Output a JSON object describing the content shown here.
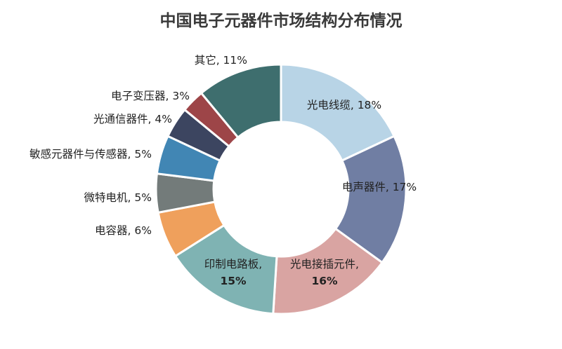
{
  "chart_data": {
    "type": "pie",
    "title": "中国电子元器件市场结构分布情况",
    "categories": [
      "光电线缆",
      "电声器件",
      "光电接插元件",
      "印制电路板",
      "电容器",
      "微特电机",
      "敏感元器件与传感器",
      "光通信器件",
      "电子变压器",
      "其它"
    ],
    "values": [
      18,
      17,
      16,
      15,
      6,
      5,
      5,
      4,
      3,
      11
    ],
    "unit": "%",
    "labels": [
      "光电线缆, 18%",
      "电声器件, 17%",
      "光电接插元件, 16%",
      "印制电路板, 15%",
      "电容器, 6%",
      "微特电机, 5%",
      "敏感元器件与传感器, 5%",
      "光通信器件, 4%",
      "电子变压器, 3%",
      "其它, 11%"
    ],
    "colors": [
      "#b8d4e6",
      "#707ea3",
      "#d9a4a2",
      "#7fb3b3",
      "#efa05c",
      "#737b7a",
      "#4186b4",
      "#3c4560",
      "#9d4548",
      "#3e6e6e"
    ],
    "legend": "none"
  }
}
